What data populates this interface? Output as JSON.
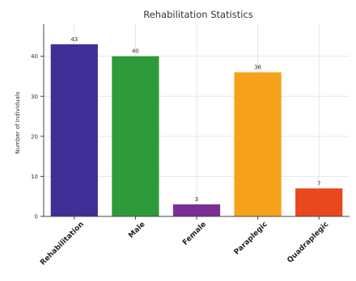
{
  "chart_data": {
    "type": "bar",
    "title": "Rehabilitation Statistics",
    "xlabel": "",
    "ylabel": "Number of Individuals",
    "categories": [
      "Rehabilitation",
      "Male",
      "Female",
      "Paraplegic",
      "Quadraplegic"
    ],
    "values": [
      43,
      40,
      3,
      36,
      7
    ],
    "data_labels": [
      "43",
      "40",
      "3",
      "36",
      "7"
    ],
    "colors": [
      "#3f2f97",
      "#2e9a3a",
      "#7b2d96",
      "#f5a21a",
      "#e9471d"
    ],
    "ylim": [
      0,
      48
    ],
    "yticks": [
      0,
      10,
      20,
      30,
      40
    ],
    "ytick_labels": [
      "0",
      "10",
      "20",
      "30",
      "40"
    ],
    "grid": true,
    "legend": "none"
  }
}
